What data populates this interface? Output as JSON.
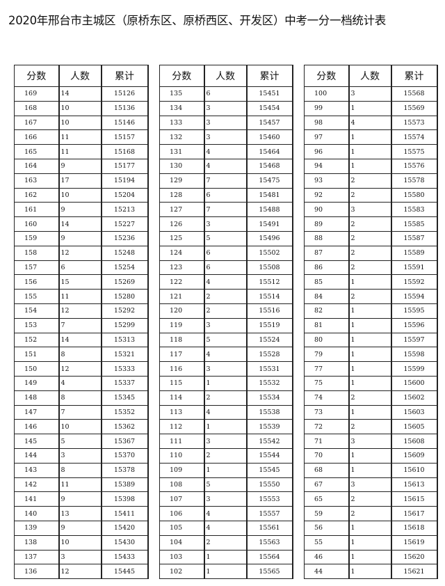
{
  "title": "2020年邢台市主城区（原桥东区、原桥西区、开发区）中考一分一档统计表",
  "headers": [
    "分数",
    "人数",
    "累计"
  ],
  "tables": [
    {
      "rows": [
        [
          "169",
          "14",
          "15126"
        ],
        [
          "168",
          "10",
          "15136"
        ],
        [
          "167",
          "10",
          "15146"
        ],
        [
          "166",
          "11",
          "15157"
        ],
        [
          "165",
          "11",
          "15168"
        ],
        [
          "164",
          "9",
          "15177"
        ],
        [
          "163",
          "17",
          "15194"
        ],
        [
          "162",
          "10",
          "15204"
        ],
        [
          "161",
          "9",
          "15213"
        ],
        [
          "160",
          "14",
          "15227"
        ],
        [
          "159",
          "9",
          "15236"
        ],
        [
          "158",
          "12",
          "15248"
        ],
        [
          "157",
          "6",
          "15254"
        ],
        [
          "156",
          "15",
          "15269"
        ],
        [
          "155",
          "11",
          "15280"
        ],
        [
          "154",
          "12",
          "15292"
        ],
        [
          "153",
          "7",
          "15299"
        ],
        [
          "152",
          "14",
          "15313"
        ],
        [
          "151",
          "8",
          "15321"
        ],
        [
          "150",
          "12",
          "15333"
        ],
        [
          "149",
          "4",
          "15337"
        ],
        [
          "148",
          "8",
          "15345"
        ],
        [
          "147",
          "7",
          "15352"
        ],
        [
          "146",
          "10",
          "15362"
        ],
        [
          "145",
          "5",
          "15367"
        ],
        [
          "144",
          "3",
          "15370"
        ],
        [
          "143",
          "8",
          "15378"
        ],
        [
          "142",
          "11",
          "15389"
        ],
        [
          "141",
          "9",
          "15398"
        ],
        [
          "140",
          "13",
          "15411"
        ],
        [
          "139",
          "9",
          "15420"
        ],
        [
          "138",
          "10",
          "15430"
        ],
        [
          "137",
          "3",
          "15433"
        ],
        [
          "136",
          "12",
          "15445"
        ]
      ]
    },
    {
      "rows": [
        [
          "135",
          "6",
          "15451"
        ],
        [
          "134",
          "3",
          "15454"
        ],
        [
          "133",
          "3",
          "15457"
        ],
        [
          "132",
          "3",
          "15460"
        ],
        [
          "131",
          "4",
          "15464"
        ],
        [
          "130",
          "4",
          "15468"
        ],
        [
          "129",
          "7",
          "15475"
        ],
        [
          "128",
          "6",
          "15481"
        ],
        [
          "127",
          "7",
          "15488"
        ],
        [
          "126",
          "3",
          "15491"
        ],
        [
          "125",
          "5",
          "15496"
        ],
        [
          "124",
          "6",
          "15502"
        ],
        [
          "123",
          "6",
          "15508"
        ],
        [
          "122",
          "4",
          "15512"
        ],
        [
          "121",
          "2",
          "15514"
        ],
        [
          "120",
          "2",
          "15516"
        ],
        [
          "119",
          "3",
          "15519"
        ],
        [
          "118",
          "5",
          "15524"
        ],
        [
          "117",
          "4",
          "15528"
        ],
        [
          "116",
          "3",
          "15531"
        ],
        [
          "115",
          "1",
          "15532"
        ],
        [
          "114",
          "2",
          "15534"
        ],
        [
          "113",
          "4",
          "15538"
        ],
        [
          "112",
          "1",
          "15539"
        ],
        [
          "111",
          "3",
          "15542"
        ],
        [
          "110",
          "2",
          "15544"
        ],
        [
          "109",
          "1",
          "15545"
        ],
        [
          "108",
          "5",
          "15550"
        ],
        [
          "107",
          "3",
          "15553"
        ],
        [
          "106",
          "4",
          "15557"
        ],
        [
          "105",
          "4",
          "15561"
        ],
        [
          "104",
          "2",
          "15563"
        ],
        [
          "103",
          "1",
          "15564"
        ],
        [
          "102",
          "1",
          "15565"
        ]
      ]
    },
    {
      "rows": [
        [
          "100",
          "3",
          "15568"
        ],
        [
          "99",
          "1",
          "15569"
        ],
        [
          "98",
          "4",
          "15573"
        ],
        [
          "97",
          "1",
          "15574"
        ],
        [
          "96",
          "1",
          "15575"
        ],
        [
          "94",
          "1",
          "15576"
        ],
        [
          "93",
          "2",
          "15578"
        ],
        [
          "92",
          "2",
          "15580"
        ],
        [
          "90",
          "3",
          "15583"
        ],
        [
          "89",
          "2",
          "15585"
        ],
        [
          "88",
          "2",
          "15587"
        ],
        [
          "87",
          "2",
          "15589"
        ],
        [
          "86",
          "2",
          "15591"
        ],
        [
          "85",
          "1",
          "15592"
        ],
        [
          "84",
          "2",
          "15594"
        ],
        [
          "82",
          "1",
          "15595"
        ],
        [
          "81",
          "1",
          "15596"
        ],
        [
          "80",
          "1",
          "15597"
        ],
        [
          "79",
          "1",
          "15598"
        ],
        [
          "77",
          "1",
          "15599"
        ],
        [
          "75",
          "1",
          "15600"
        ],
        [
          "74",
          "2",
          "15602"
        ],
        [
          "73",
          "1",
          "15603"
        ],
        [
          "72",
          "2",
          "15605"
        ],
        [
          "71",
          "3",
          "15608"
        ],
        [
          "70",
          "1",
          "15609"
        ],
        [
          "68",
          "1",
          "15610"
        ],
        [
          "67",
          "3",
          "15613"
        ],
        [
          "65",
          "2",
          "15615"
        ],
        [
          "59",
          "2",
          "15617"
        ],
        [
          "56",
          "1",
          "15618"
        ],
        [
          "55",
          "1",
          "15619"
        ],
        [
          "46",
          "1",
          "15620"
        ],
        [
          "44",
          "1",
          "15621"
        ]
      ]
    }
  ]
}
